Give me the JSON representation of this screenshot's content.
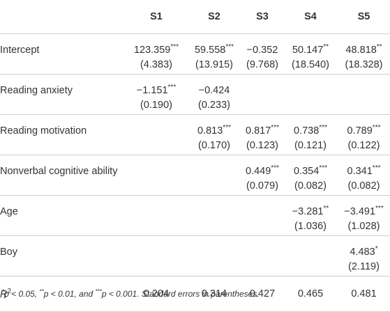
{
  "columns": [
    "S1",
    "S2",
    "S3",
    "S4",
    "S5"
  ],
  "rows": [
    {
      "label": "Intercept",
      "values": [
        [
          "123.359",
          "***"
        ],
        [
          "59.558",
          "***"
        ],
        [
          "−0.352",
          ""
        ],
        [
          "50.147",
          "**"
        ],
        [
          "48.818",
          "**"
        ]
      ],
      "se": [
        "(4.383)",
        "(13.915)",
        "(9.768)",
        "(18.540)",
        "(18.328)"
      ]
    },
    {
      "label": "Reading anxiety",
      "values": [
        [
          "−1.151",
          "***"
        ],
        [
          "−0.424",
          ""
        ],
        [
          "",
          ""
        ],
        [
          "",
          ""
        ],
        [
          "",
          ""
        ]
      ],
      "se": [
        "(0.190)",
        "(0.233)",
        "",
        "",
        ""
      ]
    },
    {
      "label": "Reading motivation",
      "values": [
        [
          "",
          ""
        ],
        [
          "0.813",
          "***"
        ],
        [
          "0.817",
          "***"
        ],
        [
          "0.738",
          "***"
        ],
        [
          "0.789",
          "***"
        ]
      ],
      "se": [
        "",
        "(0.170)",
        "(0.123)",
        "(0.121)",
        "(0.122)"
      ]
    },
    {
      "label": "Nonverbal cognitive ability",
      "values": [
        [
          "",
          ""
        ],
        [
          "",
          ""
        ],
        [
          "0.449",
          "***"
        ],
        [
          "0.354",
          "***"
        ],
        [
          "0.341",
          "***"
        ]
      ],
      "se": [
        "",
        "",
        "(0.079)",
        "(0.082)",
        "(0.082)"
      ]
    },
    {
      "label": "Age",
      "values": [
        [
          "",
          ""
        ],
        [
          "",
          ""
        ],
        [
          "",
          ""
        ],
        [
          "−3.281",
          "**"
        ],
        [
          "−3.491",
          "***"
        ]
      ],
      "se": [
        "",
        "",
        "",
        "(1.036)",
        "(1.028)"
      ]
    },
    {
      "label": "Boy",
      "values": [
        [
          "",
          ""
        ],
        [
          "",
          ""
        ],
        [
          "",
          ""
        ],
        [
          "",
          ""
        ],
        [
          "4.483",
          "*"
        ]
      ],
      "se": [
        "",
        "",
        "",
        "",
        "(2.119)"
      ]
    }
  ],
  "r2": {
    "label": "R",
    "label_sup": "2",
    "values": [
      "0.204",
      "0.314",
      "0.427",
      "0.465",
      "0.481"
    ]
  },
  "note": {
    "sig1": {
      "mark": "*",
      "text": "p < 0.05, "
    },
    "sig2": {
      "mark": "**",
      "text": "p < 0.01, and "
    },
    "sig3": {
      "mark": "***",
      "text": "p < 0.001. Standard errors in parentheses."
    }
  }
}
